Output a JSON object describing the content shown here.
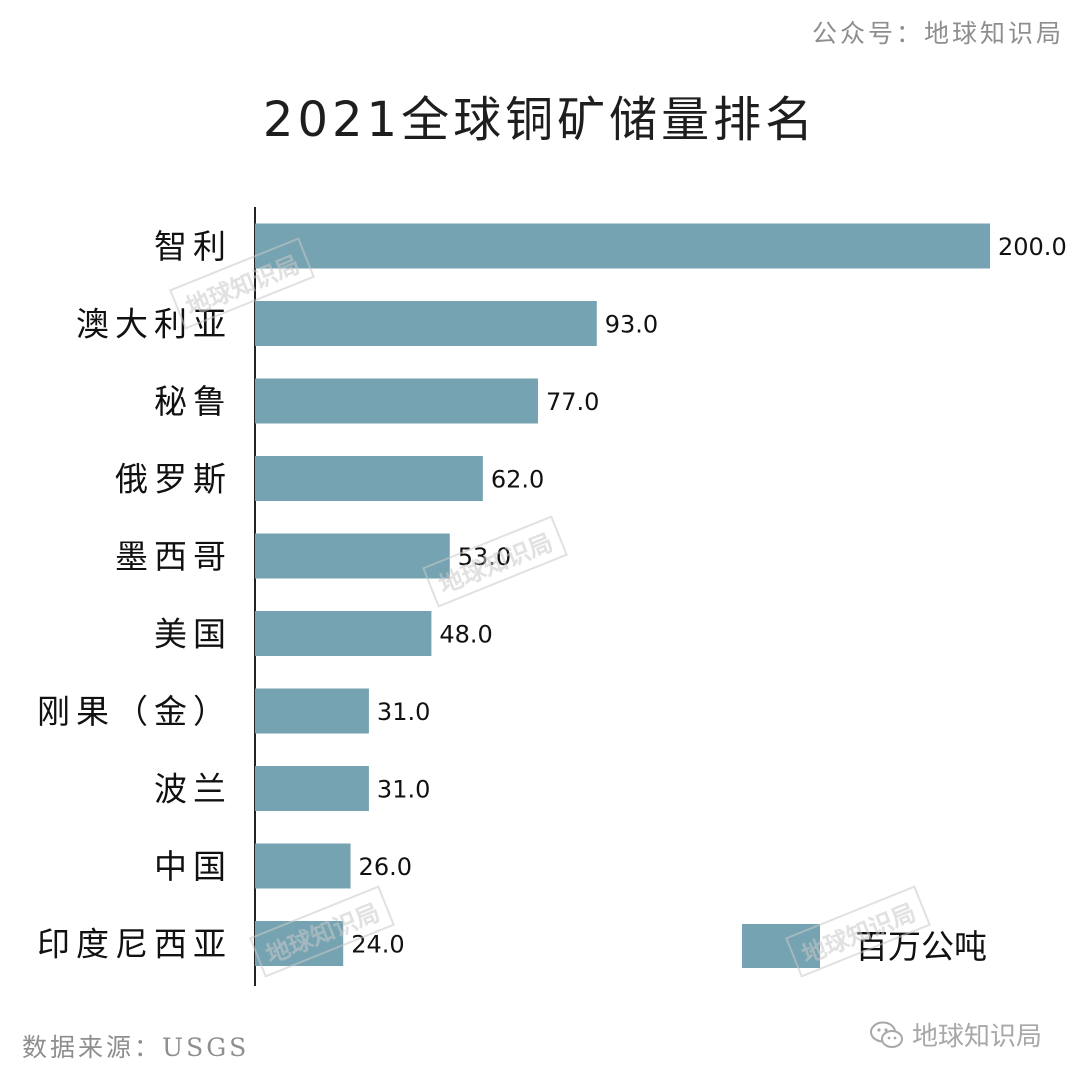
{
  "header": {
    "account": "公众号：地球知识局",
    "title": "2021全球铜矿储量排名"
  },
  "watermark_text": "地球知识局",
  "footer": {
    "source": "数据来源：USGS",
    "brand": "地球知识局",
    "brand_icon": "wechat-icon"
  },
  "colors": {
    "bar": "#75a3b1",
    "text": "#111111",
    "axis": "#222222"
  },
  "chart_data": {
    "type": "bar",
    "orientation": "horizontal",
    "title": "2021全球铜矿储量排名",
    "categories": [
      "智利",
      "澳大利亚",
      "秘鲁",
      "俄罗斯",
      "墨西哥",
      "美国",
      "刚果（金）",
      "波兰",
      "中国",
      "印度尼西亚"
    ],
    "series": [
      {
        "name": "百万公吨",
        "values": [
          200.0,
          93.0,
          77.0,
          62.0,
          53.0,
          48.0,
          31.0,
          31.0,
          26.0,
          24.0
        ],
        "labels": [
          "200.0",
          "93.0",
          "77.0",
          "62.0",
          "53.0",
          "48.0",
          "31.0",
          "31.0",
          "26.0",
          "24.0"
        ]
      }
    ],
    "xlim": [
      0,
      200
    ],
    "legend": "bottom-right",
    "grid": false
  }
}
